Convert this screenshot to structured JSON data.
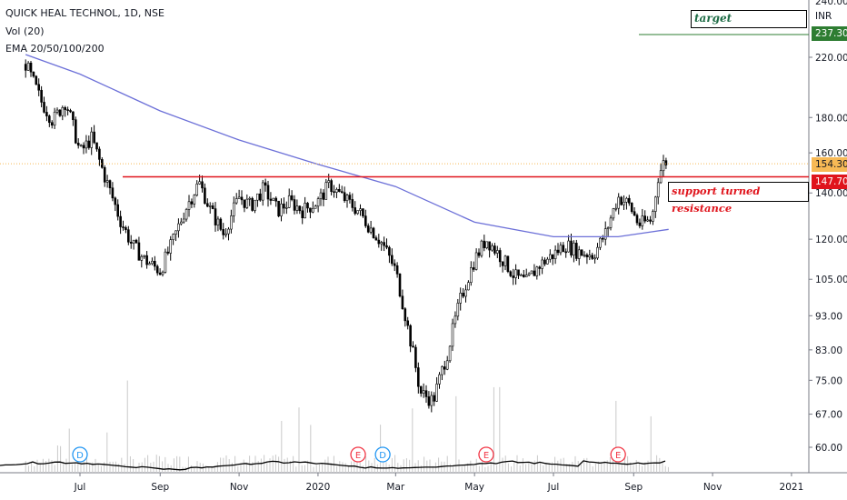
{
  "legend": {
    "symbol": "QUICK HEAL TECHNOL, 1D, NSE",
    "vol": "Vol (20)",
    "ema": "EMA 20/50/100/200"
  },
  "annotations": {
    "target_label": "target",
    "support_label": "support turned resistance"
  },
  "price_tags": {
    "target": {
      "label": "237.30",
      "color": "#2e7d32"
    },
    "current": {
      "label": "154.30",
      "color": "#f7b955"
    },
    "resistance": {
      "label": "147.70",
      "color": "#e0141c"
    },
    "currency": "INR"
  },
  "chart_data": {
    "type": "candlestick",
    "title": "QUICK HEAL TECHNOL, 1D, NSE",
    "y_scale": "log",
    "y_ticks": [
      60,
      67,
      75,
      83,
      93,
      105,
      120,
      140,
      160,
      180,
      220
    ],
    "y_tick_labels": [
      "60.00",
      "67.00",
      "75.00",
      "83.00",
      "93.00",
      "105.00",
      "120.00",
      "140.00",
      "160.00",
      "180.00",
      "220.00"
    ],
    "top_partial_label": "240.00",
    "x_ticks": [
      "Jul",
      "Sep",
      "Nov",
      "2020",
      "Mar",
      "May",
      "Jul",
      "Sep",
      "Nov",
      "2021"
    ],
    "price_path": [
      [
        "2019-05-20",
        215
      ],
      [
        "2019-06-01",
        190
      ],
      [
        "2019-06-10",
        178
      ],
      [
        "2019-06-20",
        190
      ],
      [
        "2019-07-01",
        160
      ],
      [
        "2019-07-10",
        168
      ],
      [
        "2019-07-20",
        148
      ],
      [
        "2019-08-01",
        128
      ],
      [
        "2019-08-10",
        118
      ],
      [
        "2019-08-20",
        112
      ],
      [
        "2019-09-01",
        108
      ],
      [
        "2019-09-10",
        118
      ],
      [
        "2019-09-20",
        132
      ],
      [
        "2019-10-01",
        145
      ],
      [
        "2019-10-10",
        132
      ],
      [
        "2019-10-20",
        122
      ],
      [
        "2019-11-01",
        138
      ],
      [
        "2019-11-10",
        134
      ],
      [
        "2019-11-20",
        142
      ],
      [
        "2019-12-01",
        132
      ],
      [
        "2019-12-10",
        136
      ],
      [
        "2019-12-20",
        132
      ],
      [
        "2020-01-01",
        136
      ],
      [
        "2020-01-10",
        144
      ],
      [
        "2020-01-20",
        138
      ],
      [
        "2020-02-01",
        132
      ],
      [
        "2020-02-10",
        125
      ],
      [
        "2020-02-20",
        118
      ],
      [
        "2020-03-01",
        108
      ],
      [
        "2020-03-10",
        90
      ],
      [
        "2020-03-20",
        72
      ],
      [
        "2020-03-30",
        70
      ],
      [
        "2020-04-10",
        82
      ],
      [
        "2020-04-20",
        98
      ],
      [
        "2020-05-01",
        112
      ],
      [
        "2020-05-10",
        120
      ],
      [
        "2020-05-20",
        114
      ],
      [
        "2020-06-01",
        106
      ],
      [
        "2020-06-10",
        104
      ],
      [
        "2020-06-20",
        110
      ],
      [
        "2020-07-01",
        114
      ],
      [
        "2020-07-10",
        118
      ],
      [
        "2020-07-20",
        115
      ],
      [
        "2020-08-01",
        114
      ],
      [
        "2020-08-10",
        122
      ],
      [
        "2020-08-20",
        138
      ],
      [
        "2020-08-28",
        135
      ],
      [
        "2020-09-05",
        126
      ],
      [
        "2020-09-15",
        128
      ],
      [
        "2020-09-20",
        148
      ],
      [
        "2020-09-25",
        156
      ],
      [
        "2020-09-28",
        154.3
      ]
    ],
    "ema200_path": [
      [
        "2019-05-20",
        222
      ],
      [
        "2019-07-01",
        208
      ],
      [
        "2019-09-01",
        184
      ],
      [
        "2019-11-01",
        167
      ],
      [
        "2020-01-01",
        154
      ],
      [
        "2020-03-01",
        143
      ],
      [
        "2020-05-01",
        127
      ],
      [
        "2020-07-01",
        121
      ],
      [
        "2020-08-20",
        121
      ],
      [
        "2020-09-28",
        124
      ]
    ],
    "levels": {
      "target": 237.3,
      "resistance": 147.7,
      "current": 154.3
    },
    "events": [
      {
        "letter": "D",
        "date": "2019-07-01"
      },
      {
        "letter": "E",
        "date": "2020-02-01"
      },
      {
        "letter": "D",
        "date": "2020-02-20"
      },
      {
        "letter": "E",
        "date": "2020-05-10"
      },
      {
        "letter": "E",
        "date": "2020-08-20"
      }
    ],
    "colors": {
      "up": "#000000",
      "down": "#000000",
      "ema": "#6c70d8",
      "volume": "#c9c9c9",
      "event_dividend": "#2196f3",
      "event_earnings": "#f23645",
      "current_line": "#f7b955"
    }
  }
}
